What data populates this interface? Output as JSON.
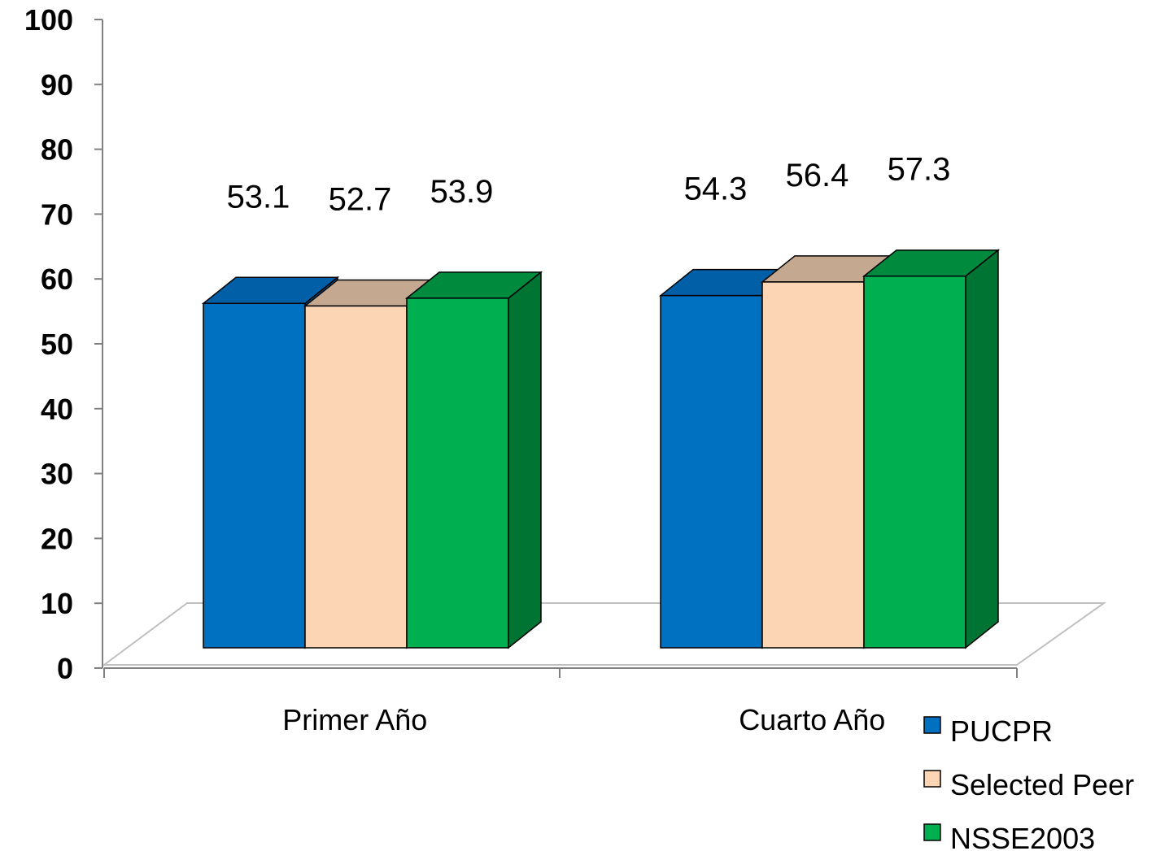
{
  "chart_data": {
    "type": "bar",
    "style": "3d-clustered-column",
    "title": "",
    "xlabel": "",
    "ylabel": "",
    "ylim": [
      0,
      100
    ],
    "yticks": [
      0,
      10,
      20,
      30,
      40,
      50,
      60,
      70,
      80,
      90,
      100
    ],
    "grid": false,
    "legend_position": "bottom-right",
    "categories": [
      "Primer Año",
      "Cuarto Año"
    ],
    "series": [
      {
        "name": "PUCPR",
        "values": [
          53.1,
          54.3
        ],
        "labels": [
          "53.1",
          "54.3"
        ],
        "color": "#0070C0",
        "top_color": "#005FA6",
        "side_color": "#004E8A"
      },
      {
        "name": "Selected Peer",
        "values": [
          52.7,
          56.4
        ],
        "labels": [
          "52.7",
          "56.4"
        ],
        "color": "#FCD5B5",
        "top_color": "#C4A890",
        "side_color": "#B89A80"
      },
      {
        "name": "NSSE2003",
        "values": [
          53.9,
          57.3
        ],
        "labels": [
          "53.9",
          "57.3"
        ],
        "color": "#00B050",
        "top_color": "#008A3E",
        "side_color": "#007432"
      }
    ],
    "floor_color": "#C0C0C0"
  }
}
